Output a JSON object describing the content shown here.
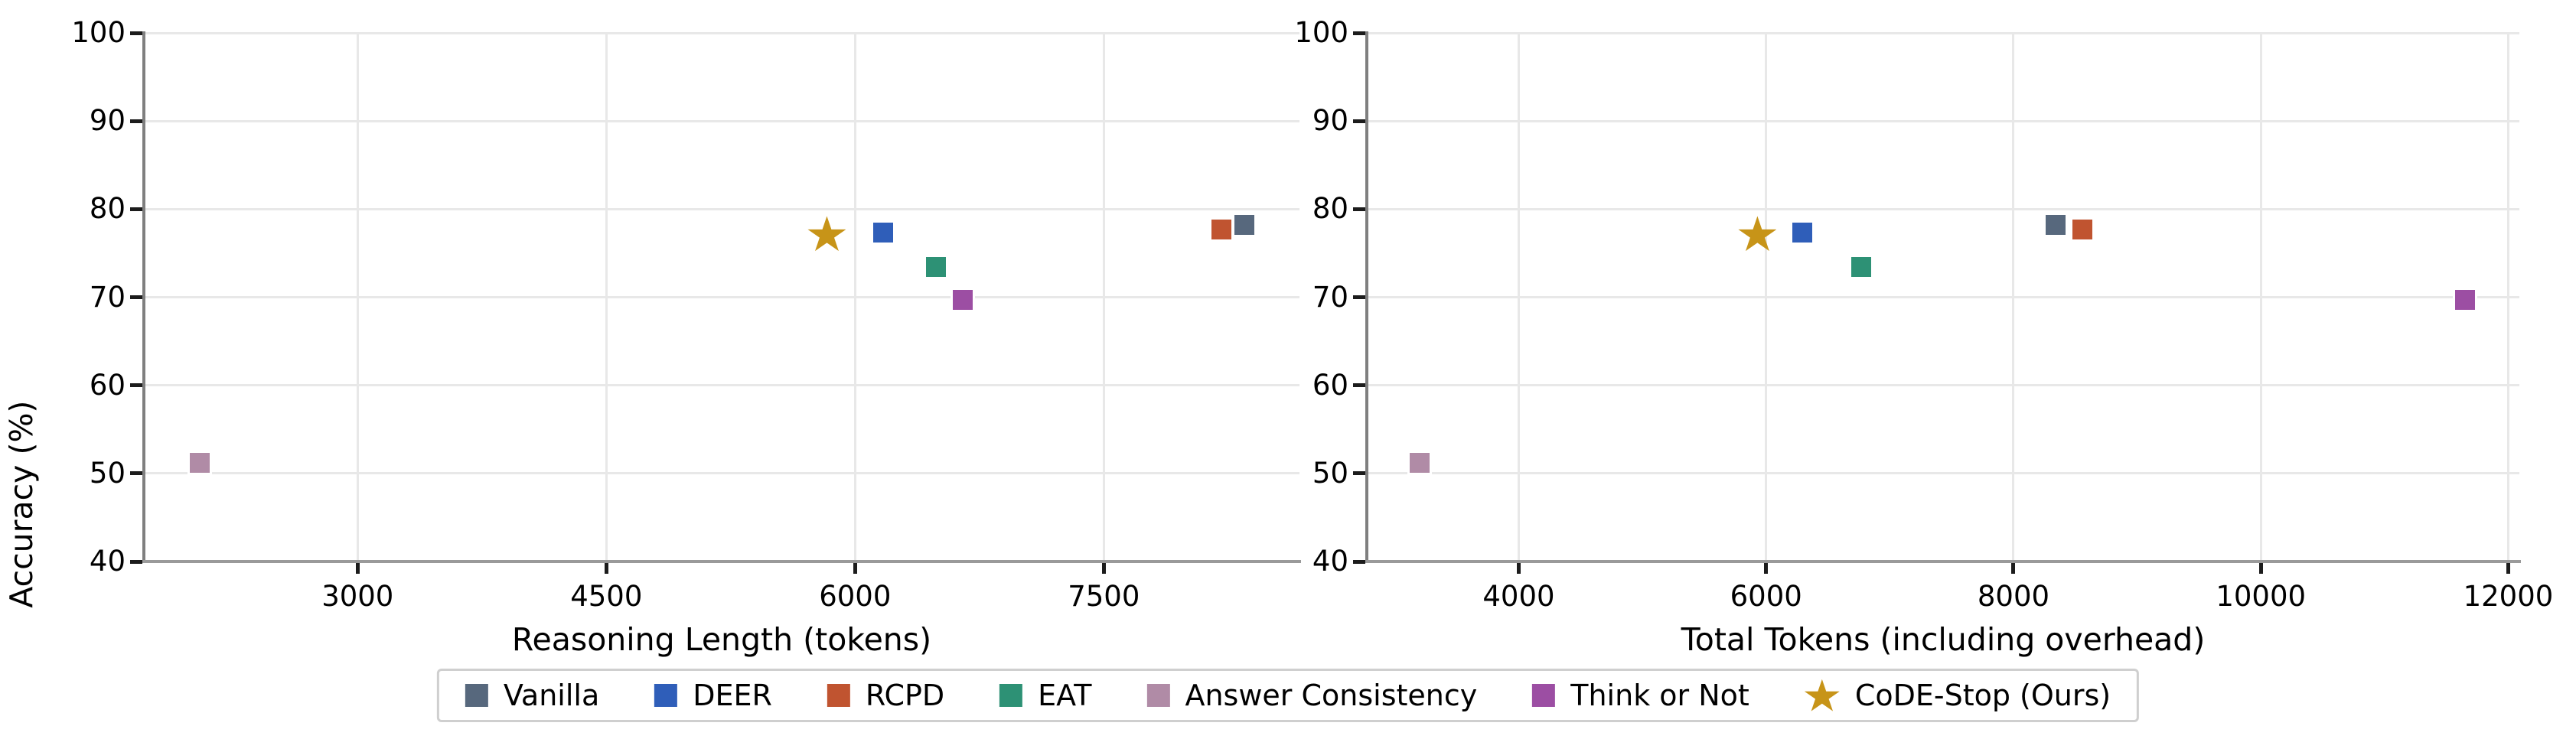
{
  "chart_data": [
    {
      "type": "scatter",
      "title": "",
      "xlabel": "Reasoning Length (tokens)",
      "ylabel": "Accuracy (%)",
      "xticks": [
        3000,
        4500,
        6000,
        7500
      ],
      "yticks": [
        40,
        50,
        60,
        70,
        80,
        90,
        100
      ],
      "xlim": [
        1711,
        8680
      ],
      "ylim": [
        40,
        100
      ],
      "grid": true,
      "series": [
        {
          "name": "Vanilla",
          "x": 8350,
          "y": 78.2
        },
        {
          "name": "DEER",
          "x": 6170,
          "y": 77.3
        },
        {
          "name": "RCPD",
          "x": 8210,
          "y": 77.7
        },
        {
          "name": "EAT",
          "x": 6490,
          "y": 73.4
        },
        {
          "name": "Answer Consistency",
          "x": 2050,
          "y": 51.2
        },
        {
          "name": "Think or Not",
          "x": 6650,
          "y": 69.7
        },
        {
          "name": "CoDE-Stop (Ours)",
          "x": 5830,
          "y": 77.2
        }
      ]
    },
    {
      "type": "scatter",
      "title": "",
      "xlabel": "Total Tokens (including overhead)",
      "ylabel": "Accuracy (%)",
      "xticks": [
        4000,
        6000,
        8000,
        10000,
        12000
      ],
      "yticks": [
        40,
        50,
        60,
        70,
        80,
        90,
        100
      ],
      "xlim": [
        2772,
        12090
      ],
      "ylim": [
        40,
        100
      ],
      "grid": true,
      "series": [
        {
          "name": "Vanilla",
          "x": 8340,
          "y": 78.2
        },
        {
          "name": "DEER",
          "x": 6290,
          "y": 77.3
        },
        {
          "name": "RCPD",
          "x": 8560,
          "y": 77.7
        },
        {
          "name": "EAT",
          "x": 6770,
          "y": 73.4
        },
        {
          "name": "Answer Consistency",
          "x": 3200,
          "y": 51.2
        },
        {
          "name": "Think or Not",
          "x": 11650,
          "y": 69.7
        },
        {
          "name": "CoDE-Stop (Ours)",
          "x": 5930,
          "y": 77.2
        }
      ]
    }
  ],
  "legend": {
    "position": "bottom-center",
    "entries": [
      {
        "label": "Vanilla",
        "color": "#57687d",
        "marker": "square"
      },
      {
        "label": "DEER",
        "color": "#2f5eb9",
        "marker": "square"
      },
      {
        "label": "RCPD",
        "color": "#c05430",
        "marker": "square"
      },
      {
        "label": "EAT",
        "color": "#2d9175",
        "marker": "square"
      },
      {
        "label": "Answer Consistency",
        "color": "#b08ba6",
        "marker": "square"
      },
      {
        "label": "Think or Not",
        "color": "#9c4ea3",
        "marker": "square"
      },
      {
        "label": "CoDE-Stop (Ours)",
        "color": "#c79418",
        "marker": "star"
      }
    ]
  },
  "style": {
    "background": "#ffffff",
    "gridline_color": "#e8e8e8",
    "spine_color": "#7f7f7f",
    "axis_color": "#9a9a9a",
    "tick_color": "#1c1c1c",
    "text_color": "#000000"
  }
}
